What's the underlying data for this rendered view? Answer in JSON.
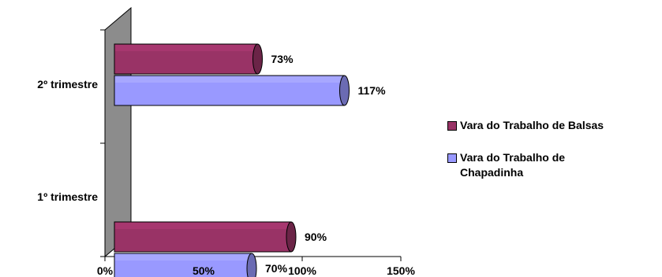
{
  "chart_data": {
    "type": "bar",
    "orientation": "horizontal",
    "categories": [
      "1º trimestre",
      "2º trimestre"
    ],
    "series": [
      {
        "name": "Vara do Trabalho de Balsas",
        "values": [
          90,
          73
        ],
        "labels": [
          "90%",
          "73%"
        ],
        "color": "#993366"
      },
      {
        "name": "Vara do Trabalho de Chapadinha",
        "values": [
          70,
          117
        ],
        "labels": [
          "70%",
          "117%"
        ],
        "color": "#9999ff"
      }
    ],
    "xlim": [
      0,
      150
    ],
    "xticks": [
      0,
      50,
      100,
      150
    ],
    "xtick_labels": [
      "0%",
      "50%",
      "100%",
      "150%"
    ],
    "legend_position": "right",
    "grid": false,
    "style": "3d"
  },
  "legend": {
    "items": [
      {
        "label": "Vara do Trabalho de Balsas",
        "color": "#993366"
      },
      {
        "label": "Vara do Trabalho de Chapadinha",
        "color": "#9999ff"
      }
    ]
  }
}
